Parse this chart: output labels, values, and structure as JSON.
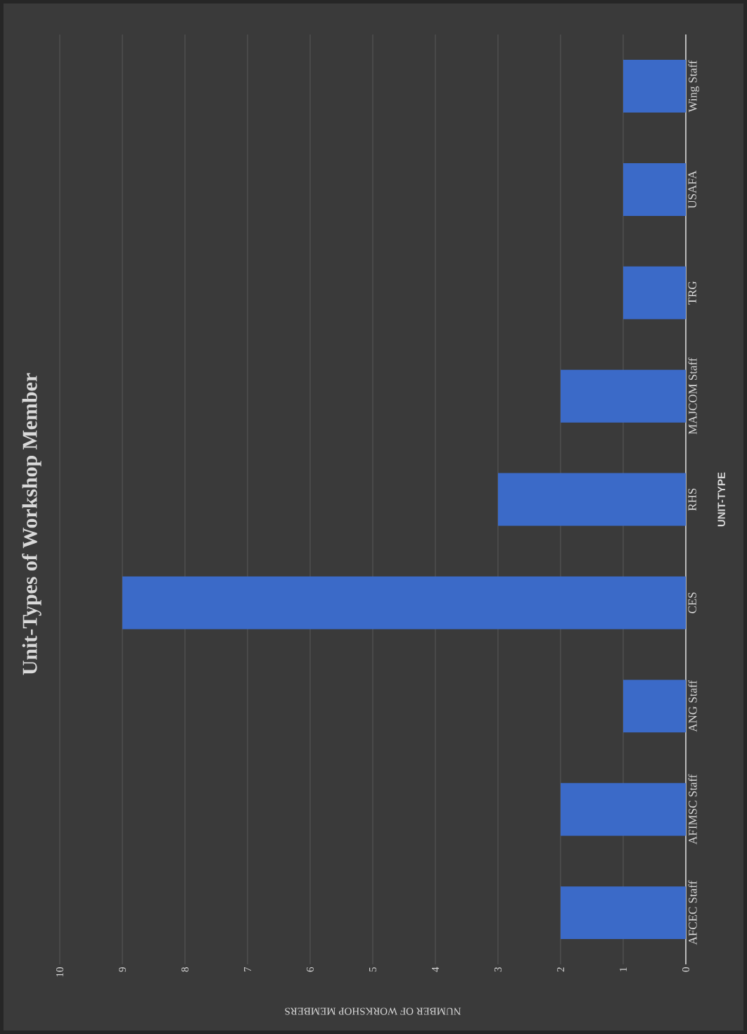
{
  "chart_data": {
    "type": "bar",
    "orientation": "horizontal",
    "title": "Unit-Types of Workshop Member",
    "xlabel": "NUMBER OF WORKSHOP MEMBERS",
    "ylabel": "UNIT-TYPE",
    "categories": [
      "Wing Staff",
      "USAFA",
      "TRG",
      "MAJCOM Staff",
      "RHS",
      "CES",
      "ANG Staff",
      "AFIMSC Staff",
      "AFCEC Staff"
    ],
    "values": [
      1,
      1,
      1,
      2,
      3,
      9,
      1,
      2,
      2
    ],
    "color": "#3b6ac8",
    "xlim": [
      10,
      0
    ],
    "xticks": [
      0,
      1,
      2,
      3,
      4,
      5,
      6,
      7,
      8,
      9,
      10
    ],
    "grid": "x"
  }
}
